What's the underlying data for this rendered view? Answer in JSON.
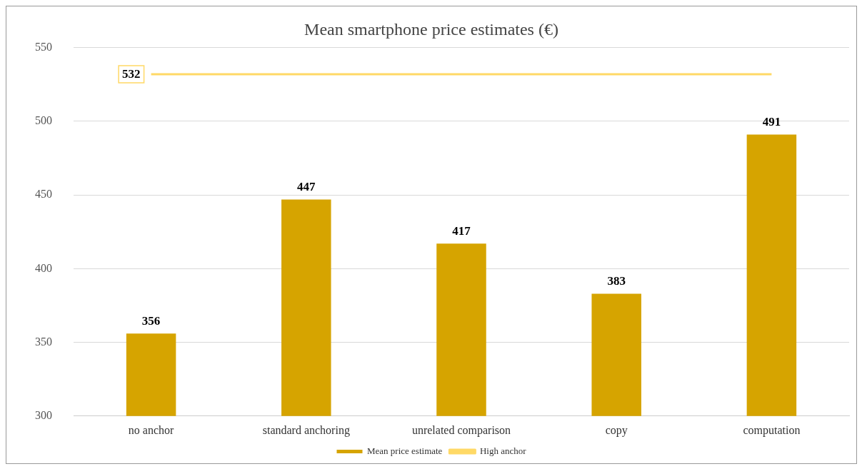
{
  "chart_data": {
    "type": "bar",
    "title": "Mean smartphone price estimates (€)",
    "categories": [
      "no anchor",
      "standard anchoring",
      "unrelated comparison",
      "copy",
      "computation"
    ],
    "series": [
      {
        "name": "Mean price estimate",
        "color": "#d6a400",
        "values": [
          356,
          447,
          417,
          383,
          491
        ],
        "value_labels": [
          "356",
          "447",
          "417",
          "383",
          "491"
        ]
      },
      {
        "name": "High anchor",
        "type": "line",
        "color": "#ffd966",
        "values": [
          532,
          532,
          532,
          532,
          532
        ],
        "value_labels": [
          "532",
          null,
          null,
          null,
          null
        ]
      }
    ],
    "ylim": [
      300,
      550
    ],
    "yticks": [
      300,
      350,
      400,
      450,
      500,
      550
    ],
    "grid": "y",
    "legend": "bottom",
    "marker": "none"
  }
}
